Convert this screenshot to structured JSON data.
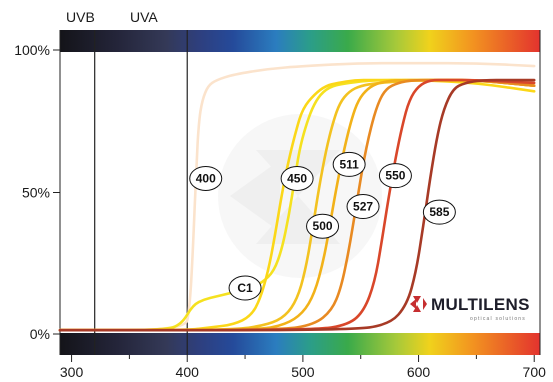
{
  "chart_data": {
    "type": "line",
    "xlim": [
      290,
      705
    ],
    "ylim": [
      0,
      100
    ],
    "x_ticks": [
      "300",
      "400",
      "500",
      "600",
      "700"
    ],
    "y_ticks": [
      "0%",
      "50%",
      "100%"
    ],
    "band_labels": [
      "UVB",
      "UVA"
    ],
    "band_boundaries": [
      320,
      400
    ],
    "series": [
      {
        "name": "400",
        "color": "#fbe3cc",
        "x": [
          290,
          398,
          402,
          405,
          408,
          410,
          413,
          418,
          425,
          440,
          470,
          500,
          550,
          600,
          650,
          700
        ],
        "y": [
          1,
          1,
          8,
          30,
          60,
          75,
          83,
          88,
          90,
          92,
          94,
          95,
          96,
          96,
          96,
          95
        ]
      },
      {
        "name": "C1",
        "color": "#f5e11f",
        "x": [
          290,
          380,
          395,
          405,
          415,
          425,
          435,
          445,
          455,
          465,
          475,
          482,
          488,
          493,
          497,
          502,
          508,
          515,
          525,
          540,
          560,
          600,
          650,
          700
        ],
        "y": [
          1,
          1,
          3,
          10,
          12,
          13,
          14,
          15,
          16,
          18,
          22,
          30,
          42,
          55,
          65,
          73,
          80,
          85,
          88,
          89,
          90,
          90,
          90,
          88
        ]
      },
      {
        "name": "450",
        "color": "#fbd718",
        "x": [
          290,
          400,
          420,
          440,
          455,
          463,
          470,
          476,
          482,
          488,
          494,
          500,
          510,
          520,
          530,
          545,
          560,
          600,
          650,
          700
        ],
        "y": [
          1,
          1,
          2,
          3,
          6,
          12,
          22,
          35,
          50,
          62,
          72,
          80,
          85,
          88,
          89,
          90,
          90,
          90,
          89,
          86
        ]
      },
      {
        "name": "500",
        "color": "#f3c220",
        "x": [
          290,
          440,
          470,
          485,
          495,
          502,
          508,
          514,
          520,
          526,
          532,
          540,
          550,
          565,
          600,
          650,
          700
        ],
        "y": [
          1,
          1,
          3,
          6,
          12,
          22,
          36,
          52,
          65,
          75,
          82,
          86,
          88,
          89,
          90,
          90,
          88
        ]
      },
      {
        "name": "511",
        "color": "#f2b219",
        "x": [
          290,
          460,
          485,
          500,
          510,
          518,
          524,
          530,
          536,
          542,
          548,
          556,
          565,
          580,
          610,
          650,
          700
        ],
        "y": [
          1,
          1,
          3,
          7,
          14,
          26,
          40,
          54,
          66,
          76,
          83,
          87,
          89,
          90,
          90,
          90,
          88
        ]
      },
      {
        "name": "527",
        "color": "#e88a22",
        "x": [
          290,
          480,
          510,
          525,
          533,
          540,
          546,
          552,
          558,
          565,
          572,
          582,
          595,
          620,
          650,
          700
        ],
        "y": [
          1,
          1,
          3,
          8,
          16,
          30,
          45,
          60,
          72,
          82,
          87,
          89,
          90,
          90,
          90,
          88
        ]
      },
      {
        "name": "550",
        "color": "#d9472a",
        "x": [
          290,
          510,
          540,
          553,
          562,
          568,
          574,
          580,
          586,
          592,
          600,
          610,
          625,
          650,
          700
        ],
        "y": [
          1,
          1,
          3,
          8,
          18,
          32,
          48,
          62,
          74,
          83,
          88,
          90,
          90,
          90,
          89
        ]
      },
      {
        "name": "585",
        "color": "#a73a26",
        "x": [
          290,
          540,
          575,
          590,
          598,
          604,
          610,
          616,
          622,
          630,
          640,
          655,
          680,
          700
        ],
        "y": [
          1,
          1,
          3,
          10,
          22,
          38,
          55,
          70,
          80,
          87,
          89,
          90,
          90,
          90
        ]
      }
    ],
    "labels": [
      {
        "text": "400",
        "x": 416,
        "y": 55
      },
      {
        "text": "C1",
        "x": 450,
        "y": 16
      },
      {
        "text": "450",
        "x": 495,
        "y": 55
      },
      {
        "text": "500",
        "x": 517,
        "y": 38
      },
      {
        "text": "511",
        "x": 540,
        "y": 60
      },
      {
        "text": "527",
        "x": 552,
        "y": 45
      },
      {
        "text": "550",
        "x": 580,
        "y": 56
      },
      {
        "text": "585",
        "x": 618,
        "y": 43
      }
    ],
    "brand": {
      "name": "MULTILENS",
      "tagline": "optical solutions"
    },
    "colors": {
      "uv_band": [
        "#181820",
        "#2b2e48",
        "#3a4a7a"
      ],
      "visible_band": [
        "#2a3f8f",
        "#2f7fbf",
        "#2aa35a",
        "#e8d21e",
        "#f08a1e",
        "#e0332a"
      ]
    }
  }
}
